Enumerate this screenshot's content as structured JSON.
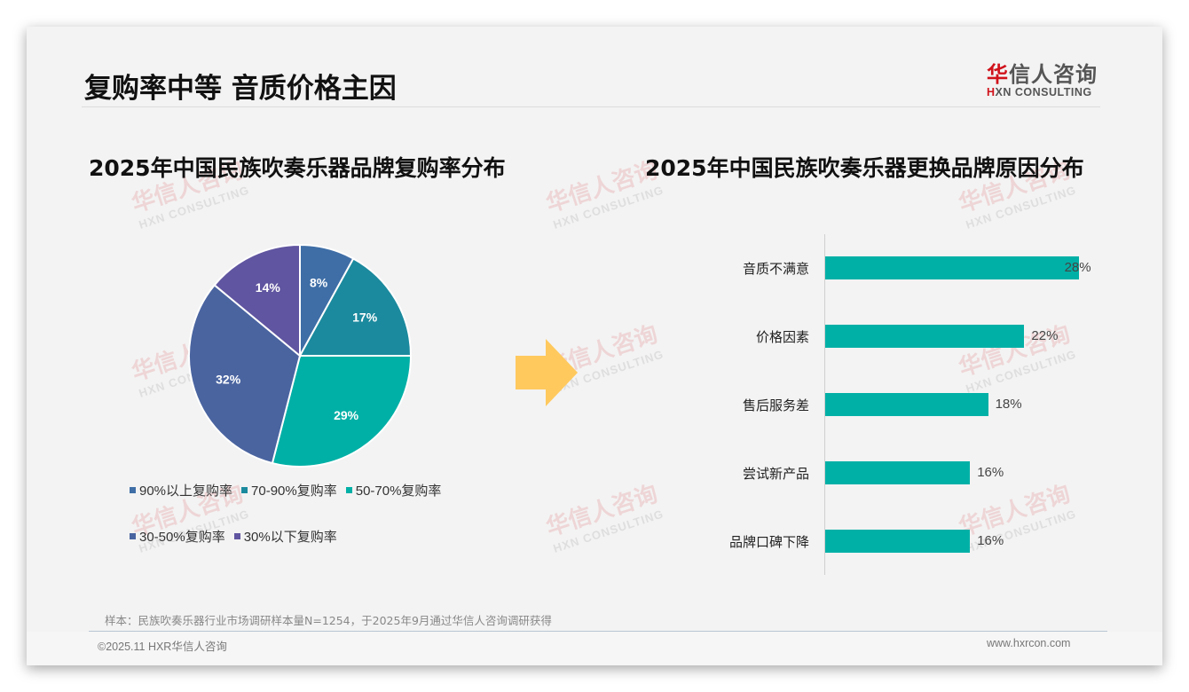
{
  "header": {
    "title": "复购率中等 音质价格主因",
    "logo": {
      "cn_red": "华",
      "cn_rest": "信人咨询",
      "en_red": "H",
      "en_rest": "XN CONSULTING"
    }
  },
  "watermark": {
    "cn": "华信人咨询",
    "en": "HXN CONSULTING"
  },
  "left_chart": {
    "title": "2025年中国民族吹奏乐器品牌复购率分布"
  },
  "right_chart": {
    "title": "2025年中国民族吹奏乐器更换品牌原因分布"
  },
  "chart_data": [
    {
      "type": "pie",
      "title": "2025年中国民族吹奏乐器品牌复购率分布",
      "categories": [
        "90%以上复购率",
        "70-90%复购率",
        "50-70%复购率",
        "30-50%复购率",
        "30%以下复购率"
      ],
      "values": [
        8,
        17,
        29,
        32,
        14
      ],
      "labels": [
        "8%",
        "17%",
        "29%",
        "32%",
        "14%"
      ],
      "colors": [
        "#3f6ea6",
        "#1b8a9e",
        "#00b0a6",
        "#4a64a0",
        "#6055a0"
      ],
      "start_angle": "12 o'clock, clockwise",
      "legend_position": "bottom"
    },
    {
      "type": "bar",
      "orientation": "horizontal",
      "title": "2025年中国民族吹奏乐器更换品牌原因分布",
      "categories": [
        "音质不满意",
        "价格因素",
        "售后服务差",
        "尝试新产品",
        "品牌口碑下降"
      ],
      "values": [
        28,
        22,
        18,
        16,
        16
      ],
      "labels": [
        "28%",
        "22%",
        "18%",
        "16%",
        "16%"
      ],
      "color": "#00b0a6",
      "grid": false,
      "xlabel": "",
      "ylabel": ""
    }
  ],
  "arrow": {
    "icon": "right-arrow-icon",
    "color": "#ffc95e"
  },
  "footer": {
    "note": "样本：民族吹奏乐器行业市场调研样本量N=1254，于2025年9月通过华信人咨询调研获得",
    "copyright": "©2025.11 HXR华信人咨询",
    "site": "www.hxrcon.com"
  }
}
